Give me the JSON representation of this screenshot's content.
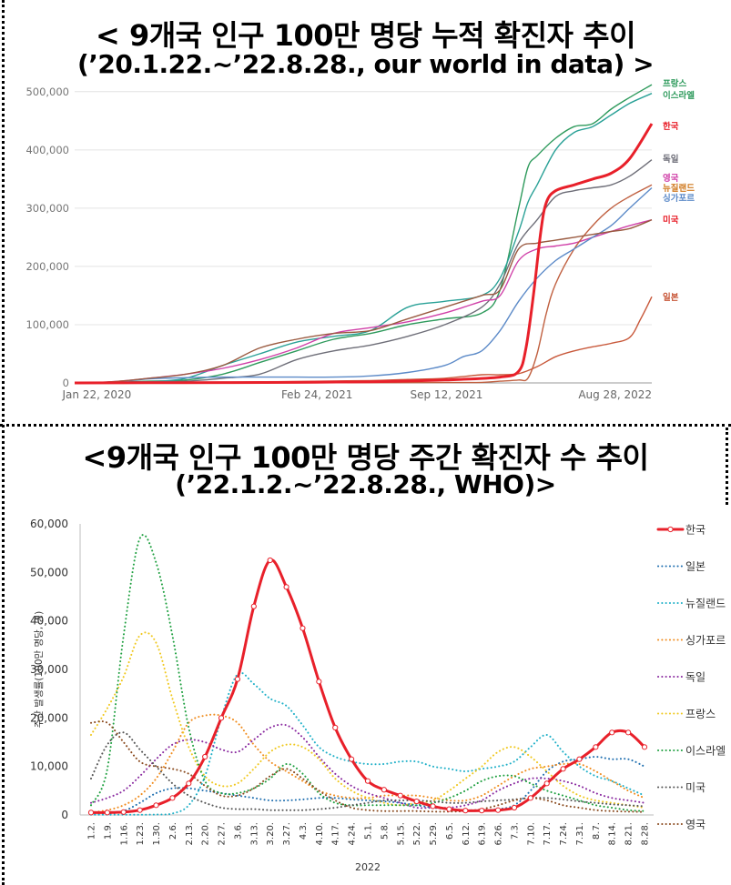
{
  "titles": {
    "top_line1": "< 9개국 인구 100만 명당 누적 확진자 추이",
    "top_line2": "(’20.1.22.~’22.8.28., our world in data) >",
    "bottom_line1": "<9개국 인구 100만 명당 주간 확진자 수 추이",
    "bottom_line2": "(’22.1.2.~’22.8.28., WHO)>"
  },
  "chart_data": [
    {
      "type": "line",
      "title": "9개국 인구 100만 명당 누적 확진자 추이 (’20.1.22.~’22.8.28., our world in data)",
      "xlabel": "",
      "ylabel": "",
      "x_ticks": [
        "Jan 22, 2020",
        "Feb 24, 2021",
        "Sep 12, 2021",
        "Aug 28, 2022"
      ],
      "y_ticks": [
        "0",
        "100,000",
        "200,000",
        "300,000",
        "400,000",
        "500,000"
      ],
      "xlim_months": [
        0,
        31.2
      ],
      "ylim": [
        0,
        520000
      ],
      "x_unit": "months since Jan 22, 2020",
      "grid": "horizontal",
      "legend": "right (end-of-line labels)",
      "series": [
        {
          "name": "프랑스",
          "color": "#2e9a5c",
          "width": 1.4,
          "x": [
            0,
            2,
            4,
            6,
            8,
            10,
            12,
            14,
            16,
            18,
            20,
            22,
            23,
            24,
            24.5,
            25,
            26,
            27,
            28,
            29,
            30,
            31.2
          ],
          "y": [
            0,
            1000,
            3000,
            5000,
            15000,
            35000,
            55000,
            75000,
            85000,
            100000,
            110000,
            120000,
            160000,
            300000,
            370000,
            390000,
            420000,
            440000,
            445000,
            470000,
            490000,
            512000
          ]
        },
        {
          "name": "이스라엘",
          "color": "#2aa197",
          "width": 1.4,
          "x": [
            0,
            2,
            4,
            6,
            8,
            10,
            12,
            14,
            16,
            18,
            20,
            22,
            23,
            24,
            24.5,
            25,
            26,
            27,
            28,
            29,
            30,
            31.2
          ],
          "y": [
            0,
            500,
            2000,
            8000,
            30000,
            50000,
            70000,
            80000,
            90000,
            130000,
            140000,
            150000,
            180000,
            260000,
            310000,
            340000,
            400000,
            430000,
            440000,
            460000,
            480000,
            497000
          ]
        },
        {
          "name": "한국",
          "color": "#e8202a",
          "width": 3,
          "x": [
            0,
            4,
            8,
            12,
            16,
            20,
            23,
            24,
            24.4,
            24.8,
            25.2,
            25.5,
            26,
            27,
            28,
            29,
            30,
            31.2
          ],
          "y": [
            0,
            300,
            600,
            1000,
            2000,
            5000,
            10000,
            20000,
            60000,
            150000,
            260000,
            310000,
            330000,
            340000,
            350000,
            360000,
            385000,
            445000
          ]
        },
        {
          "name": "독일",
          "color": "#6e6e78",
          "width": 1.4,
          "x": [
            0,
            2,
            4,
            6,
            8,
            10,
            12,
            14,
            16,
            18,
            20,
            22,
            23,
            24,
            25,
            26,
            27,
            28,
            29,
            30,
            31.2
          ],
          "y": [
            0,
            1000,
            2000,
            3000,
            8000,
            15000,
            40000,
            55000,
            65000,
            80000,
            100000,
            130000,
            170000,
            240000,
            280000,
            320000,
            330000,
            335000,
            340000,
            355000,
            383000
          ]
        },
        {
          "name": "영국",
          "color": "#d040a8",
          "width": 1.4,
          "x": [
            0,
            2,
            4,
            6,
            8,
            10,
            12,
            14,
            16,
            18,
            20,
            22,
            23,
            24,
            25,
            26,
            27,
            28,
            29,
            30,
            31.2
          ],
          "y": [
            0,
            2000,
            8000,
            15000,
            25000,
            40000,
            60000,
            85000,
            95000,
            105000,
            120000,
            140000,
            150000,
            210000,
            230000,
            235000,
            240000,
            250000,
            260000,
            270000,
            280000
          ]
        },
        {
          "name": "뉴질랜드",
          "color": "#c06040",
          "width": 1.4,
          "x": [
            0,
            4,
            8,
            12,
            16,
            20,
            22,
            23,
            24,
            24.5,
            25,
            25.5,
            26,
            27,
            28,
            29,
            30,
            31.2
          ],
          "y": [
            0,
            300,
            400,
            500,
            500,
            700,
            1000,
            3000,
            5000,
            8000,
            50000,
            120000,
            170000,
            230000,
            270000,
            300000,
            320000,
            340000
          ]
        },
        {
          "name": "싱가포르",
          "color": "#5c8ac8",
          "width": 1.4,
          "x": [
            0,
            2,
            4,
            6,
            8,
            10,
            12,
            14,
            16,
            18,
            20,
            21,
            22,
            23,
            24,
            25,
            26,
            27,
            28,
            29,
            30,
            31.2
          ],
          "y": [
            0,
            1000,
            7000,
            9000,
            10000,
            10000,
            10000,
            10000,
            12000,
            18000,
            30000,
            45000,
            55000,
            90000,
            140000,
            180000,
            210000,
            230000,
            250000,
            270000,
            300000,
            335000
          ]
        },
        {
          "name": "미국",
          "color": "#9a5a40",
          "width": 1.4,
          "x": [
            0,
            2,
            4,
            6,
            8,
            10,
            12,
            14,
            16,
            18,
            20,
            22,
            23,
            24,
            25,
            26,
            27,
            28,
            29,
            30,
            31.2
          ],
          "y": [
            0,
            2000,
            8000,
            15000,
            30000,
            60000,
            75000,
            85000,
            90000,
            110000,
            130000,
            150000,
            160000,
            230000,
            240000,
            245000,
            250000,
            255000,
            260000,
            265000,
            280000
          ]
        },
        {
          "name": "일본",
          "color": "#c8583a",
          "width": 1.4,
          "x": [
            0,
            4,
            8,
            12,
            16,
            18,
            20,
            22,
            23,
            24,
            25,
            26,
            27,
            28,
            29,
            30,
            30.6,
            31.2
          ],
          "y": [
            0,
            400,
            1000,
            2500,
            4000,
            6000,
            8000,
            14000,
            14000,
            16000,
            28000,
            45000,
            55000,
            62000,
            68000,
            78000,
            110000,
            148000
          ]
        }
      ],
      "end_labels": [
        {
          "name": "프랑스",
          "color": "#2e9a5c"
        },
        {
          "name": "이스라엘",
          "color": "#2e9a5c"
        },
        {
          "name": "한국",
          "color": "#e8202a"
        },
        {
          "name": "독일",
          "color": "#6e6e78"
        },
        {
          "name": "영국",
          "color": "#d040a8"
        },
        {
          "name": "뉴질랜드",
          "color": "#d07a20"
        },
        {
          "name": "싱가포르",
          "color": "#5c8ac8"
        },
        {
          "name": "미국",
          "color": "#e8202a"
        },
        {
          "name": "일본",
          "color": "#c8583a"
        }
      ]
    },
    {
      "type": "line",
      "title": "9개국 인구 100만 명당 주간 확진자 수 추이 (’22.1.2.~’22.8.28., WHO)",
      "xlabel": "2022",
      "ylabel": "주간 발생률(100만 명당, 명)",
      "categories": [
        "1.2.",
        "1.9.",
        "1.16.",
        "1.23.",
        "1.30.",
        "2.6.",
        "2.13.",
        "2.20.",
        "2.27.",
        "3.6.",
        "3.13.",
        "3.20.",
        "3.27.",
        "4.3.",
        "4.10.",
        "4.17.",
        "4.24.",
        "5.1.",
        "5.8.",
        "5.15.",
        "5.22.",
        "5.29.",
        "6.5.",
        "6.12.",
        "6.19.",
        "6.26.",
        "7.3.",
        "7.10.",
        "7.17.",
        "7.24.",
        "7.31.",
        "8.7.",
        "8.14.",
        "8.21.",
        "8.28."
      ],
      "y_ticks": [
        "0",
        "10,000",
        "20,000",
        "30,000",
        "40,000",
        "50,000",
        "60,000"
      ],
      "ylim": [
        0,
        60000
      ],
      "legend": "right",
      "series": [
        {
          "name": "한국",
          "color": "#e8202a",
          "style": "solid",
          "width": 3,
          "values": [
            500,
            500,
            600,
            1000,
            2000,
            3500,
            6500,
            12000,
            20000,
            28000,
            43000,
            52500,
            47000,
            38500,
            27500,
            18000,
            11500,
            7000,
            5200,
            4000,
            2800,
            1800,
            1200,
            900,
            900,
            1000,
            1500,
            3500,
            6500,
            9500,
            11500,
            14000,
            17000,
            17000,
            14000
          ]
        },
        {
          "name": "일본",
          "color": "#1f6fb0",
          "style": "dotted",
          "width": 2,
          "values": [
            100,
            200,
            800,
            2500,
            4500,
            5500,
            5500,
            5000,
            4500,
            4000,
            3500,
            3000,
            3000,
            3200,
            3500,
            3500,
            3200,
            3000,
            2800,
            2500,
            2000,
            1500,
            1200,
            1000,
            1000,
            1200,
            2000,
            5000,
            9000,
            11000,
            11500,
            12000,
            11500,
            11500,
            10000
          ]
        },
        {
          "name": "뉴질랜드",
          "color": "#1fb0c8",
          "style": "dotted",
          "width": 2,
          "values": [
            50,
            50,
            50,
            50,
            100,
            300,
            2000,
            8000,
            20000,
            29000,
            27000,
            24000,
            22500,
            18500,
            14000,
            12000,
            11000,
            10500,
            10500,
            11000,
            11000,
            10000,
            9500,
            9000,
            9500,
            10000,
            11000,
            14000,
            16500,
            13000,
            10000,
            8000,
            7000,
            5500,
            4000
          ]
        },
        {
          "name": "싱가포르",
          "color": "#f08c1e",
          "style": "dotted",
          "width": 2,
          "values": [
            500,
            1000,
            2000,
            4000,
            7500,
            13000,
            19000,
            20500,
            20500,
            19000,
            14500,
            11000,
            9000,
            7000,
            5000,
            4000,
            3500,
            3500,
            4000,
            4000,
            4000,
            3500,
            3000,
            3000,
            4000,
            6000,
            8000,
            9500,
            10000,
            10500,
            10500,
            9000,
            7000,
            5000,
            3500
          ]
        },
        {
          "name": "독일",
          "color": "#8a2aa0",
          "style": "dotted",
          "width": 2,
          "values": [
            2500,
            3500,
            5000,
            8000,
            11500,
            14500,
            15500,
            15000,
            13500,
            13000,
            15500,
            18000,
            18500,
            16000,
            12000,
            8500,
            6000,
            4500,
            3500,
            2500,
            1500,
            1500,
            1500,
            2000,
            3000,
            5000,
            6500,
            7500,
            7500,
            7000,
            6000,
            4500,
            3500,
            3000,
            2500
          ]
        },
        {
          "name": "프랑스",
          "color": "#f0c81e",
          "style": "dotted",
          "width": 2,
          "values": [
            16500,
            22000,
            28500,
            37000,
            35500,
            24000,
            14000,
            8000,
            6000,
            6500,
            9500,
            13000,
            14500,
            14000,
            11500,
            7500,
            5000,
            3500,
            2500,
            2000,
            2500,
            3000,
            5000,
            7500,
            10000,
            13000,
            14000,
            12000,
            9000,
            6000,
            4000,
            3000,
            2500,
            2000,
            1500
          ]
        },
        {
          "name": "이스라엘",
          "color": "#1fa040",
          "style": "dotted",
          "width": 2,
          "values": [
            2000,
            9500,
            37000,
            57000,
            52000,
            37000,
            18000,
            7000,
            4500,
            4500,
            5500,
            7500,
            10500,
            8500,
            4500,
            2500,
            2000,
            2000,
            2000,
            2000,
            2000,
            2500,
            3500,
            5000,
            7000,
            8000,
            8000,
            6500,
            5000,
            4000,
            3000,
            2000,
            1500,
            1000,
            800
          ]
        },
        {
          "name": "미국",
          "color": "#555555",
          "style": "dotted",
          "width": 2,
          "values": [
            7500,
            14500,
            17000,
            13500,
            10000,
            6500,
            4000,
            2500,
            1500,
            1200,
            1200,
            1000,
            1000,
            1000,
            1200,
            1500,
            2000,
            2500,
            3000,
            3000,
            3000,
            2800,
            2500,
            2500,
            2800,
            3000,
            3200,
            3500,
            3500,
            3200,
            2800,
            2500,
            2200,
            2000,
            1800
          ]
        },
        {
          "name": "영국",
          "color": "#8a4a1e",
          "style": "dotted",
          "width": 2,
          "values": [
            19000,
            19000,
            15000,
            11000,
            10000,
            9500,
            8500,
            6000,
            4000,
            4000,
            5500,
            8000,
            9500,
            7500,
            5000,
            3000,
            1500,
            1000,
            800,
            800,
            800,
            700,
            700,
            800,
            1200,
            2000,
            3000,
            3500,
            3000,
            2000,
            1500,
            1000,
            800,
            700,
            600
          ]
        }
      ]
    }
  ]
}
